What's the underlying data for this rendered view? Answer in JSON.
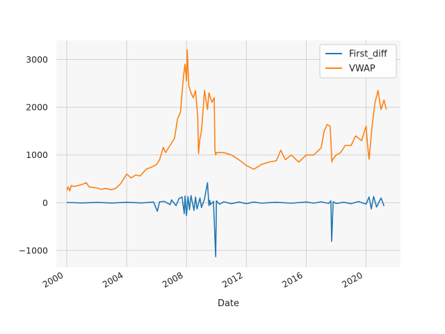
{
  "chart_data": {
    "type": "line",
    "title": "",
    "xlabel": "Date",
    "ylabel": "",
    "xlim": [
      1999.3,
      2022.3
    ],
    "ylim": [
      -1350,
      3400
    ],
    "x_ticks": [
      2000,
      2004,
      2008,
      2012,
      2016,
      2020
    ],
    "x_tick_labels": [
      "2000",
      "2004",
      "2008",
      "2012",
      "2016",
      "2020"
    ],
    "y_ticks": [
      -1000,
      0,
      1000,
      2000,
      3000
    ],
    "y_tick_labels": [
      "−1000",
      "0",
      "1000",
      "2000",
      "3000"
    ],
    "grid": true,
    "legend_position": "top-right",
    "colors": {
      "First_diff": "#1f77b4",
      "VWAP": "#ff7f0e",
      "plot_background": "#f7f7f7",
      "grid": "#d0d0d0"
    },
    "series": [
      {
        "name": "First_diff",
        "x": [
          2000.0,
          2001.0,
          2002.0,
          2003.0,
          2004.0,
          2005.0,
          2005.8,
          2006.05,
          2006.2,
          2006.5,
          2006.9,
          2007.0,
          2007.3,
          2007.5,
          2007.7,
          2007.85,
          2007.9,
          2008.0,
          2008.1,
          2008.2,
          2008.3,
          2008.5,
          2008.6,
          2008.7,
          2008.9,
          2009.0,
          2009.2,
          2009.4,
          2009.5,
          2009.55,
          2009.6,
          2009.8,
          2009.95,
          2010.0,
          2010.2,
          2010.5,
          2011.0,
          2011.5,
          2012.0,
          2012.5,
          2013.0,
          2014.0,
          2015.0,
          2016.0,
          2016.5,
          2017.0,
          2017.5,
          2017.65,
          2017.7,
          2017.8,
          2018.0,
          2018.5,
          2019.0,
          2019.5,
          2020.0,
          2020.2,
          2020.35,
          2020.5,
          2020.7,
          2021.0,
          2021.2
        ],
        "values": [
          5,
          -5,
          8,
          -6,
          10,
          -5,
          15,
          -180,
          20,
          30,
          -40,
          60,
          -60,
          90,
          120,
          -230,
          140,
          -270,
          130,
          -150,
          150,
          -160,
          120,
          -130,
          100,
          -100,
          80,
          420,
          -60,
          50,
          -40,
          30,
          -1130,
          40,
          -30,
          20,
          -20,
          15,
          -20,
          15,
          -10,
          10,
          -10,
          15,
          -10,
          20,
          -15,
          40,
          -810,
          20,
          -15,
          10,
          -20,
          25,
          -30,
          120,
          -130,
          130,
          -90,
          100,
          -70
        ]
      },
      {
        "name": "VWAP",
        "x": [
          2000.0,
          2000.1,
          2000.2,
          2000.3,
          2000.5,
          2001.0,
          2001.3,
          2001.5,
          2002.0,
          2002.3,
          2002.6,
          2003.0,
          2003.3,
          2003.6,
          2004.0,
          2004.3,
          2004.6,
          2004.9,
          2005.3,
          2005.7,
          2006.0,
          2006.2,
          2006.45,
          2006.6,
          2006.9,
          2007.2,
          2007.4,
          2007.6,
          2007.8,
          2007.9,
          2008.0,
          2008.05,
          2008.1,
          2008.15,
          2008.3,
          2008.45,
          2008.6,
          2008.75,
          2008.8,
          2008.9,
          2009.0,
          2009.2,
          2009.4,
          2009.5,
          2009.7,
          2009.85,
          2009.9,
          2009.95,
          2010.0,
          2010.5,
          2011.0,
          2011.5,
          2012.0,
          2012.5,
          2013.0,
          2013.5,
          2014.0,
          2014.3,
          2014.6,
          2015.0,
          2015.5,
          2016.0,
          2016.5,
          2017.0,
          2017.2,
          2017.4,
          2017.6,
          2017.72,
          2017.75,
          2018.0,
          2018.3,
          2018.6,
          2019.0,
          2019.3,
          2019.7,
          2020.0,
          2020.1,
          2020.2,
          2020.4,
          2020.6,
          2020.8,
          2021.0,
          2021.2,
          2021.35
        ],
        "values": [
          260,
          330,
          250,
          360,
          340,
          380,
          420,
          330,
          310,
          280,
          300,
          270,
          310,
          400,
          600,
          520,
          580,
          560,
          700,
          750,
          800,
          900,
          1160,
          1050,
          1200,
          1350,
          1750,
          1900,
          2650,
          2900,
          2550,
          3200,
          2800,
          2450,
          2300,
          2200,
          2350,
          1800,
          1030,
          1350,
          1500,
          2350,
          1950,
          2300,
          2100,
          2200,
          1100,
          1000,
          1050,
          1050,
          1000,
          900,
          780,
          700,
          800,
          850,
          880,
          1100,
          900,
          1000,
          850,
          1000,
          1000,
          1150,
          1500,
          1640,
          1600,
          850,
          900,
          1000,
          1050,
          1200,
          1200,
          1400,
          1300,
          1600,
          1200,
          910,
          1600,
          2100,
          2350,
          1950,
          2150,
          1950
        ]
      }
    ]
  }
}
